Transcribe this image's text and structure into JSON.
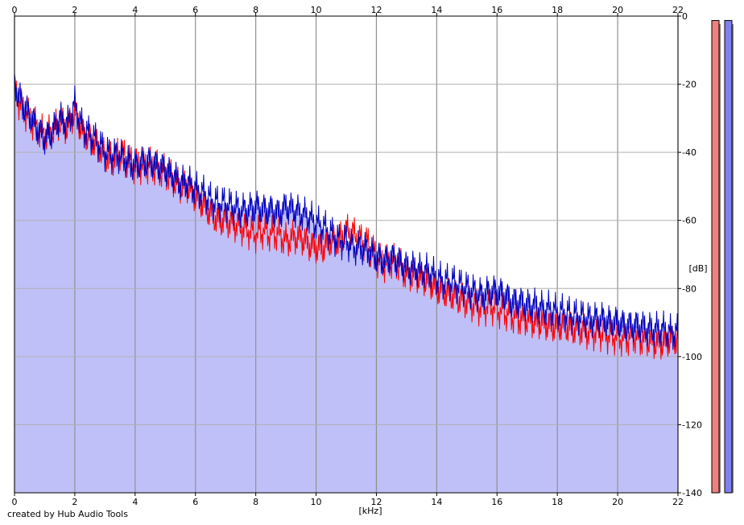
{
  "chart_data": {
    "type": "area",
    "xlabel": "[kHz]",
    "ylabel": "[dB]",
    "xlim": [
      0,
      22
    ],
    "ylim": [
      -140,
      0
    ],
    "x_ticks": [
      0,
      2,
      4,
      6,
      8,
      10,
      12,
      14,
      16,
      18,
      20,
      22
    ],
    "y_ticks": [
      0,
      -20,
      -40,
      -60,
      -80,
      -100,
      -120,
      -140
    ],
    "grid": true,
    "series": [
      {
        "channel": "red",
        "style": "line",
        "color": "#ff0000",
        "x": [
          0,
          0.25,
          0.5,
          0.75,
          1,
          1.25,
          1.5,
          1.75,
          2,
          2.25,
          2.5,
          2.75,
          3,
          3.25,
          3.5,
          3.75,
          4,
          4.25,
          4.5,
          4.75,
          5,
          5.25,
          5.5,
          5.75,
          6,
          6.25,
          6.5,
          6.75,
          7,
          7.25,
          7.5,
          7.75,
          8,
          8.25,
          8.5,
          8.75,
          9,
          9.25,
          9.5,
          9.75,
          10,
          10.25,
          10.5,
          10.75,
          11,
          11.25,
          11.5,
          11.75,
          12,
          12.25,
          12.5,
          12.75,
          13,
          13.25,
          13.5,
          13.75,
          14,
          14.25,
          14.5,
          14.75,
          15,
          15.25,
          15.5,
          15.75,
          16,
          16.25,
          16.5,
          16.75,
          17,
          17.25,
          17.5,
          17.75,
          18,
          18.25,
          18.5,
          18.75,
          19,
          19.25,
          19.5,
          19.75,
          20,
          20.25,
          20.5,
          20.75,
          21,
          21.25,
          21.5,
          21.75,
          22
        ],
        "y": [
          -22,
          -27,
          -30,
          -33,
          -35,
          -34,
          -31,
          -33,
          -28,
          -34,
          -36,
          -38,
          -41,
          -42,
          -40,
          -42,
          -44,
          -44,
          -44,
          -45,
          -46,
          -48,
          -50,
          -50,
          -53,
          -55,
          -58,
          -60,
          -60,
          -61,
          -62,
          -63,
          -64,
          -63,
          -64,
          -64,
          -66,
          -65,
          -65,
          -67,
          -68,
          -68,
          -66,
          -66,
          -63,
          -64,
          -66,
          -67,
          -71,
          -73,
          -72,
          -73,
          -76,
          -76,
          -77,
          -78,
          -80,
          -81,
          -82,
          -83,
          -84,
          -85,
          -86,
          -85,
          -86,
          -87,
          -88,
          -89,
          -89,
          -90,
          -90,
          -91,
          -91,
          -91,
          -92,
          -92,
          -93,
          -93,
          -93,
          -94,
          -94,
          -95,
          -94,
          -95,
          -95,
          -96,
          -96,
          -95,
          -95
        ]
      },
      {
        "channel": "blue",
        "style": "line-with-fill",
        "color": "#0000c0",
        "fill": "#c0c0f8",
        "x": [
          0,
          0.25,
          0.5,
          0.75,
          1,
          1.25,
          1.5,
          1.75,
          2,
          2.25,
          2.5,
          2.75,
          3,
          3.25,
          3.5,
          3.75,
          4,
          4.25,
          4.5,
          4.75,
          5,
          5.25,
          5.5,
          5.75,
          6,
          6.25,
          6.5,
          6.75,
          7,
          7.25,
          7.5,
          7.75,
          8,
          8.25,
          8.5,
          8.75,
          9,
          9.25,
          9.5,
          9.75,
          10,
          10.25,
          10.5,
          10.75,
          11,
          11.25,
          11.5,
          11.75,
          12,
          12.25,
          12.5,
          12.75,
          13,
          13.25,
          13.5,
          13.75,
          14,
          14.25,
          14.5,
          14.75,
          15,
          15.25,
          15.5,
          15.75,
          16,
          16.25,
          16.5,
          16.75,
          17,
          17.25,
          17.5,
          17.75,
          18,
          18.25,
          18.5,
          18.75,
          19,
          19.25,
          19.5,
          19.75,
          20,
          20.25,
          20.5,
          20.75,
          21,
          21.25,
          21.5,
          21.75,
          22
        ],
        "y": [
          -20,
          -26,
          -29,
          -33,
          -36,
          -34,
          -30,
          -32,
          -26,
          -33,
          -35,
          -37,
          -40,
          -41,
          -41,
          -43,
          -44,
          -43,
          -43,
          -44,
          -45,
          -47,
          -49,
          -49,
          -51,
          -52,
          -54,
          -55,
          -55,
          -56,
          -57,
          -57,
          -56,
          -57,
          -57,
          -58,
          -56,
          -57,
          -58,
          -59,
          -61,
          -62,
          -64,
          -66,
          -66,
          -68,
          -68,
          -69,
          -71,
          -72,
          -71,
          -72,
          -74,
          -74,
          -75,
          -75,
          -77,
          -78,
          -78,
          -79,
          -80,
          -81,
          -82,
          -81,
          -81,
          -82,
          -84,
          -84,
          -85,
          -85,
          -86,
          -86,
          -87,
          -87,
          -88,
          -88,
          -89,
          -89,
          -89,
          -90,
          -90,
          -91,
          -91,
          -91,
          -92,
          -92,
          -92,
          -93,
          -93
        ]
      }
    ],
    "level_meters": [
      {
        "channel": "red",
        "color": "#f08080",
        "level_db": -2
      },
      {
        "channel": "blue",
        "color": "#8080f0",
        "level_db": -2
      }
    ]
  },
  "footer": {
    "credit": "created by Hub Audio Tools"
  }
}
